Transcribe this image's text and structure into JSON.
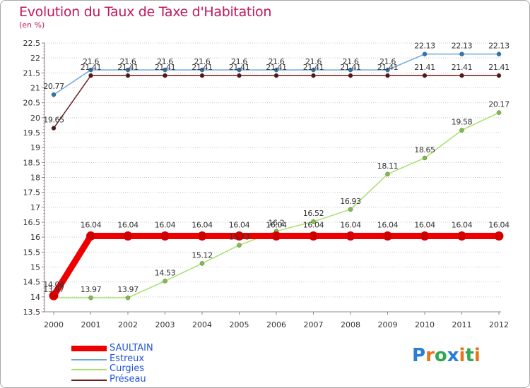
{
  "header": {
    "title": "Evolution du Taux de Taxe d'Habitation",
    "unit": "(en %)"
  },
  "logo": {
    "text": "Proxiti",
    "letters": [
      "P",
      "r",
      "o",
      "x",
      "i",
      "t",
      "i"
    ],
    "letter_colors": [
      "#2a7fd4",
      "#e8731a",
      "#33a852",
      "#2a7fd4",
      "#e8731a",
      "#33a852",
      "#e8731a"
    ]
  },
  "chart_data": {
    "type": "line",
    "title": "Evolution du Taux de Taxe d'Habitation",
    "ylabel": "(en %)",
    "xlabel": "",
    "x": [
      "2000",
      "2001",
      "2002",
      "2003",
      "2004",
      "2005",
      "2006",
      "2007",
      "2008",
      "2009",
      "2010",
      "2011",
      "2012"
    ],
    "ylim": [
      13.5,
      22.5
    ],
    "yticks": [
      "13.5",
      "14",
      "14.5",
      "15",
      "15.5",
      "16",
      "16.5",
      "17",
      "17.5",
      "18",
      "18.5",
      "19",
      "19.5",
      "20",
      "20.5",
      "21",
      "21.5",
      "22",
      "22.5"
    ],
    "grid": "horizontal-dotted",
    "legend_position": "bottom-left",
    "series": [
      {
        "name": "SAULTAIN",
        "color": "#ee0000",
        "marker_color": "#cc0000",
        "values": [
          14.04,
          16.04,
          16.04,
          16.04,
          16.04,
          16.04,
          16.04,
          16.04,
          16.04,
          16.04,
          16.04,
          16.04,
          16.04
        ],
        "labels": [
          "14.04",
          "16.04",
          "16.04",
          "16.04",
          "16.04",
          "16.04",
          "16.04",
          "16.04",
          "16.04",
          "16.04",
          "16.04",
          "16.04",
          "16.04"
        ]
      },
      {
        "name": "Estreux",
        "color": "#6fa8dc",
        "marker_color": "#2e75b6",
        "values": [
          20.77,
          21.6,
          21.6,
          21.6,
          21.6,
          21.6,
          21.6,
          21.6,
          21.6,
          21.6,
          22.13,
          22.13,
          22.13
        ],
        "labels": [
          "20.77",
          "21.6",
          "21.6",
          "21.6",
          "21.6",
          "21.6",
          "21.6",
          "21.6",
          "21.6",
          "21.6",
          "22.13",
          "22.13",
          "22.13"
        ]
      },
      {
        "name": "Curgies",
        "color": "#a8e06c",
        "marker_color": "#7cc242",
        "values": [
          13.97,
          13.97,
          13.97,
          14.53,
          15.12,
          15.73,
          16.2,
          16.52,
          16.93,
          18.11,
          18.65,
          19.58,
          20.17
        ],
        "labels": [
          "13.97",
          "13.97",
          "13.97",
          "14.53",
          "15.12",
          "15.73",
          "16.2",
          "16.52",
          "16.93",
          "18.11",
          "18.65",
          "19.58",
          "20.17"
        ]
      },
      {
        "name": "Préseau",
        "color": "#6b1f1f",
        "marker_color": "#5a1414",
        "values": [
          19.65,
          21.41,
          21.41,
          21.41,
          21.41,
          21.41,
          21.41,
          21.41,
          21.41,
          21.41,
          21.41,
          21.41,
          21.41
        ],
        "labels": [
          "19.65",
          "21.41",
          "21.41",
          "21.41",
          "21.41",
          "21.41",
          "21.41",
          "21.41",
          "21.41",
          "21.41",
          "21.41",
          "21.41",
          "21.41"
        ]
      }
    ]
  }
}
